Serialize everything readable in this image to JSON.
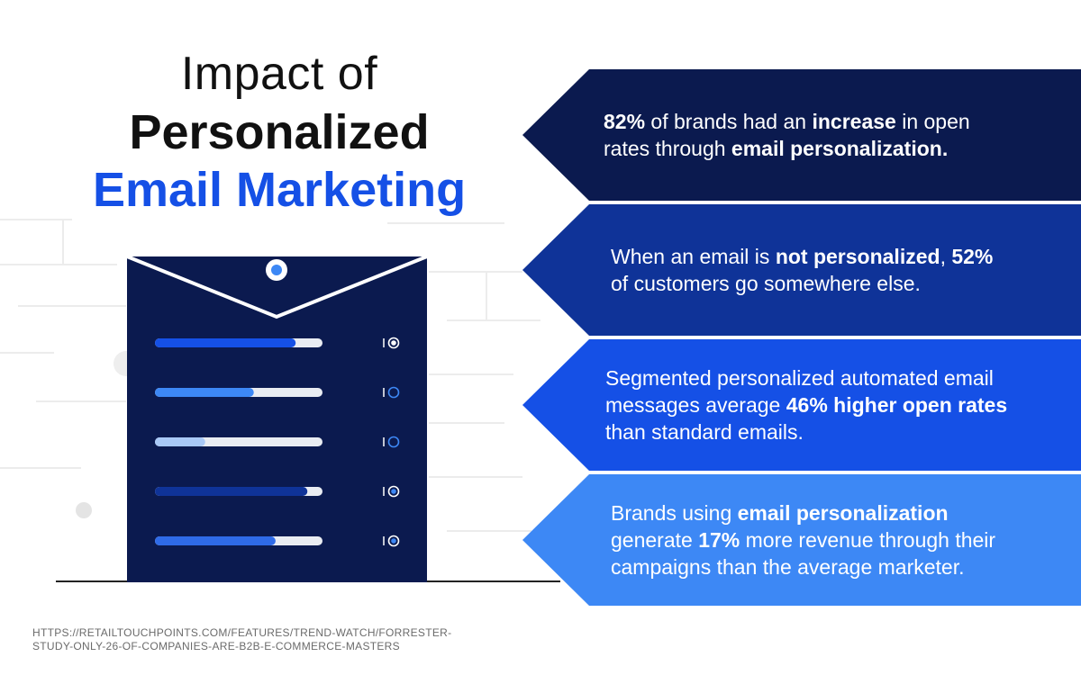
{
  "title": {
    "line1": "Impact of",
    "line2": "Personalized",
    "line3": "Email Marketing"
  },
  "colors": {
    "title_accent": "#1550e6",
    "envelope": "#0b1a4f",
    "banner_1": "#0b1a4f",
    "banner_2": "#0f3398",
    "banner_3": "#1550e6",
    "banner_4": "#3d88f5"
  },
  "banners": [
    {
      "parts": [
        {
          "text": "82%",
          "bold": true
        },
        {
          "text": " of brands had an ",
          "bold": false
        },
        {
          "text": "increase",
          "bold": true
        },
        {
          "text": " in open",
          "bold": false
        },
        {
          "br": true
        },
        {
          "text": "rates through ",
          "bold": false
        },
        {
          "text": "email personalization.",
          "bold": true
        }
      ]
    },
    {
      "parts": [
        {
          "text": "When an email is ",
          "bold": false
        },
        {
          "text": "not personalized",
          "bold": true
        },
        {
          "text": ", ",
          "bold": false
        },
        {
          "text": "52%",
          "bold": true
        },
        {
          "br": true
        },
        {
          "text": "of customers go somewhere else.",
          "bold": false
        }
      ]
    },
    {
      "parts": [
        {
          "text": "Segmented personalized automated email",
          "bold": false
        },
        {
          "br": true
        },
        {
          "text": "messages average ",
          "bold": false
        },
        {
          "text": "46% higher open rates",
          "bold": true
        },
        {
          "br": true
        },
        {
          "text": "than standard emails.",
          "bold": false
        }
      ]
    },
    {
      "parts": [
        {
          "text": "Brands using ",
          "bold": false
        },
        {
          "text": "email personalization",
          "bold": true
        },
        {
          "br": true
        },
        {
          "text": "generate ",
          "bold": false
        },
        {
          "text": "17%",
          "bold": true
        },
        {
          "text": " more revenue through their",
          "bold": false
        },
        {
          "br": true
        },
        {
          "text": "campaigns than the average marketer.",
          "bold": false
        }
      ]
    }
  ],
  "envelope_rows": [
    {
      "fill_fraction": 0.84,
      "fill_color": "#1550e6",
      "radio": "selected"
    },
    {
      "fill_fraction": 0.59,
      "fill_color": "#3d88f5",
      "radio": "empty"
    },
    {
      "fill_fraction": 0.3,
      "fill_color": "#a9c9f7",
      "radio": "empty"
    },
    {
      "fill_fraction": 0.91,
      "fill_color": "#0f3398",
      "radio": "selected"
    },
    {
      "fill_fraction": 0.72,
      "fill_color": "#2f6be8",
      "radio": "selected"
    }
  ],
  "source": "HTTPS://RETAILTOUCHPOINTS.COM/FEATURES/TREND-WATCH/FORRESTER-STUDY-ONLY-26-OF-COMPANIES-ARE-B2B-E-COMMERCE-MASTERS"
}
